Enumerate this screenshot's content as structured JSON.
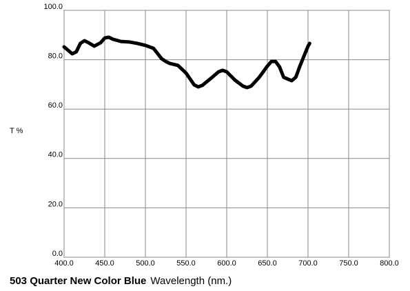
{
  "chart_data": {
    "type": "line",
    "title": "503 Quarter New Color Blue",
    "x_label": "Wavelength (nm.)",
    "y_label": "T %",
    "x": [
      400,
      410,
      415,
      420,
      425,
      430,
      437,
      445,
      450,
      455,
      460,
      470,
      480,
      490,
      500,
      510,
      520,
      525,
      530,
      540,
      550,
      560,
      565,
      570,
      580,
      590,
      595,
      600,
      610,
      620,
      625,
      630,
      640,
      650,
      655,
      660,
      665,
      670,
      680,
      685,
      690,
      700,
      702
    ],
    "series": [
      {
        "color": "#000000",
        "values": [
          85.2,
          82.4,
          83.2,
          86.6,
          87.7,
          86.9,
          85.5,
          86.9,
          88.8,
          89.1,
          88.3,
          87.4,
          87.2,
          86.6,
          85.8,
          84.6,
          80.4,
          79.3,
          78.5,
          77.7,
          74.6,
          69.8,
          69.0,
          69.6,
          72.3,
          75.1,
          75.7,
          75.1,
          71.8,
          69.3,
          68.7,
          69.3,
          72.9,
          77.4,
          79.3,
          79.3,
          77.1,
          72.9,
          71.5,
          72.9,
          77.4,
          85.5,
          86.6
        ]
      }
    ],
    "xlim": [
      400,
      800
    ],
    "ylim": [
      0,
      100
    ],
    "xticks": [
      {
        "value": 400,
        "label": "400.0"
      },
      {
        "value": 450,
        "label": "450.0"
      },
      {
        "value": 500,
        "label": "500.0"
      },
      {
        "value": 550,
        "label": "550.0"
      },
      {
        "value": 600,
        "label": "600.0"
      },
      {
        "value": 650,
        "label": "650.0"
      },
      {
        "value": 700,
        "label": "700.0"
      },
      {
        "value": 750,
        "label": "750.0"
      },
      {
        "value": 800,
        "label": "800.0"
      }
    ],
    "yticks": [
      {
        "value": 0,
        "label": "0.0"
      },
      {
        "value": 20,
        "label": "20.0"
      },
      {
        "value": 40,
        "label": "40.0"
      },
      {
        "value": 60,
        "label": "60.0"
      },
      {
        "value": 80,
        "label": "80.0"
      },
      {
        "value": 100,
        "label": "100.0"
      }
    ],
    "grid": true
  }
}
